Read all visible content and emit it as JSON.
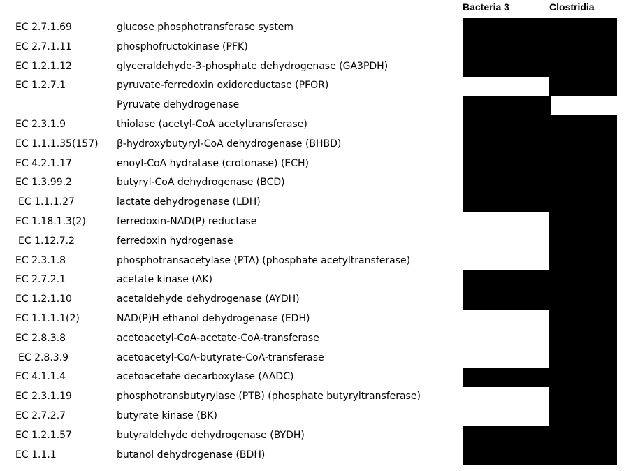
{
  "headers": {
    "bacteria3": "Bacteria 3",
    "clostridia": "Clostridia"
  },
  "fill_color": "#000000",
  "rows": [
    {
      "ec": "EC 2.7.1.69",
      "enzyme": "glucose phosphotransferase system",
      "bacteria3": true,
      "clostridia": true
    },
    {
      "ec": "EC 2.7.1.11",
      "enzyme": "phosphofructokinase (PFK)",
      "bacteria3": true,
      "clostridia": true
    },
    {
      "ec": "EC 1.2.1.12",
      "enzyme": "glyceraldehyde-3-phosphate dehydrogenase (GA3PDH)",
      "bacteria3": true,
      "clostridia": true
    },
    {
      "ec": "EC 1.2.7.1",
      "enzyme": "pyruvate-ferredoxin oxidoreductase (PFOR)",
      "bacteria3": false,
      "clostridia": true
    },
    {
      "ec": "",
      "enzyme": "Pyruvate dehydrogenase",
      "bacteria3": true,
      "clostridia": false
    },
    {
      "ec": "EC 2.3.1.9",
      "enzyme": "thiolase (acetyl-CoA acetyltransferase)",
      "bacteria3": true,
      "clostridia": true
    },
    {
      "ec": "EC 1.1.1.35(157)",
      "enzyme": "β-hydroxybutyryl-CoA dehydrogenase (BHBD)",
      "bacteria3": true,
      "clostridia": true
    },
    {
      "ec": "EC 4.2.1.17",
      "enzyme": "enoyl-CoA hydratase (crotonase) (ECH)",
      "bacteria3": true,
      "clostridia": true
    },
    {
      "ec": "EC 1.3.99.2",
      "enzyme": "butyryl-CoA dehydrogenase (BCD)",
      "bacteria3": true,
      "clostridia": true
    },
    {
      "ec": "EC 1.1.1.27",
      "enzyme": "lactate dehydrogenase (LDH)",
      "bacteria3": true,
      "clostridia": true
    },
    {
      "ec": "EC 1.18.1.3(2)",
      "enzyme": "ferredoxin-NAD(P) reductase",
      "bacteria3": false,
      "clostridia": true
    },
    {
      "ec": "EC 1.12.7.2",
      "enzyme": "ferredoxin hydrogenase",
      "bacteria3": false,
      "clostridia": true
    },
    {
      "ec": "EC 2.3.1.8",
      "enzyme": "phosphotransacetylase (PTA) (phosphate acetyltransferase)",
      "bacteria3": false,
      "clostridia": true
    },
    {
      "ec": "EC 2.7.2.1",
      "enzyme": "acetate kinase (AK)",
      "bacteria3": true,
      "clostridia": true
    },
    {
      "ec": "EC 1.2.1.10",
      "enzyme": "acetaldehyde dehydrogenase (AYDH)",
      "bacteria3": true,
      "clostridia": true
    },
    {
      "ec": "EC 1.1.1.1(2)",
      "enzyme": "NAD(P)H ethanol dehydrogenase (EDH)",
      "bacteria3": false,
      "clostridia": true
    },
    {
      "ec": "EC 2.8.3.8",
      "enzyme": "acetoacetyl-CoA-acetate-CoA-transferase",
      "bacteria3": false,
      "clostridia": true
    },
    {
      "ec": "EC 2.8.3.9",
      "enzyme": "acetoacetyl-CoA-butyrate-CoA-transferase",
      "bacteria3": false,
      "clostridia": true
    },
    {
      "ec": "EC 4.1.1.4",
      "enzyme": "acetoacetate decarboxylase (AADC)",
      "bacteria3": true,
      "clostridia": true
    },
    {
      "ec": "EC 2.3.1.19",
      "enzyme": "phosphotransbutyrylase (PTB) (phosphate butyryltransferase)",
      "bacteria3": false,
      "clostridia": true
    },
    {
      "ec": "EC 2.7.2.7",
      "enzyme": "butyrate kinase (BK)",
      "bacteria3": false,
      "clostridia": true
    },
    {
      "ec": "EC 1.2.1.57",
      "enzyme": "butyraldehyde dehydrogenase (BYDH)",
      "bacteria3": true,
      "clostridia": true
    },
    {
      "ec": "EC 1.1.1",
      "enzyme": "butanol dehydrogenase (BDH)",
      "bacteria3": true,
      "clostridia": true
    }
  ]
}
